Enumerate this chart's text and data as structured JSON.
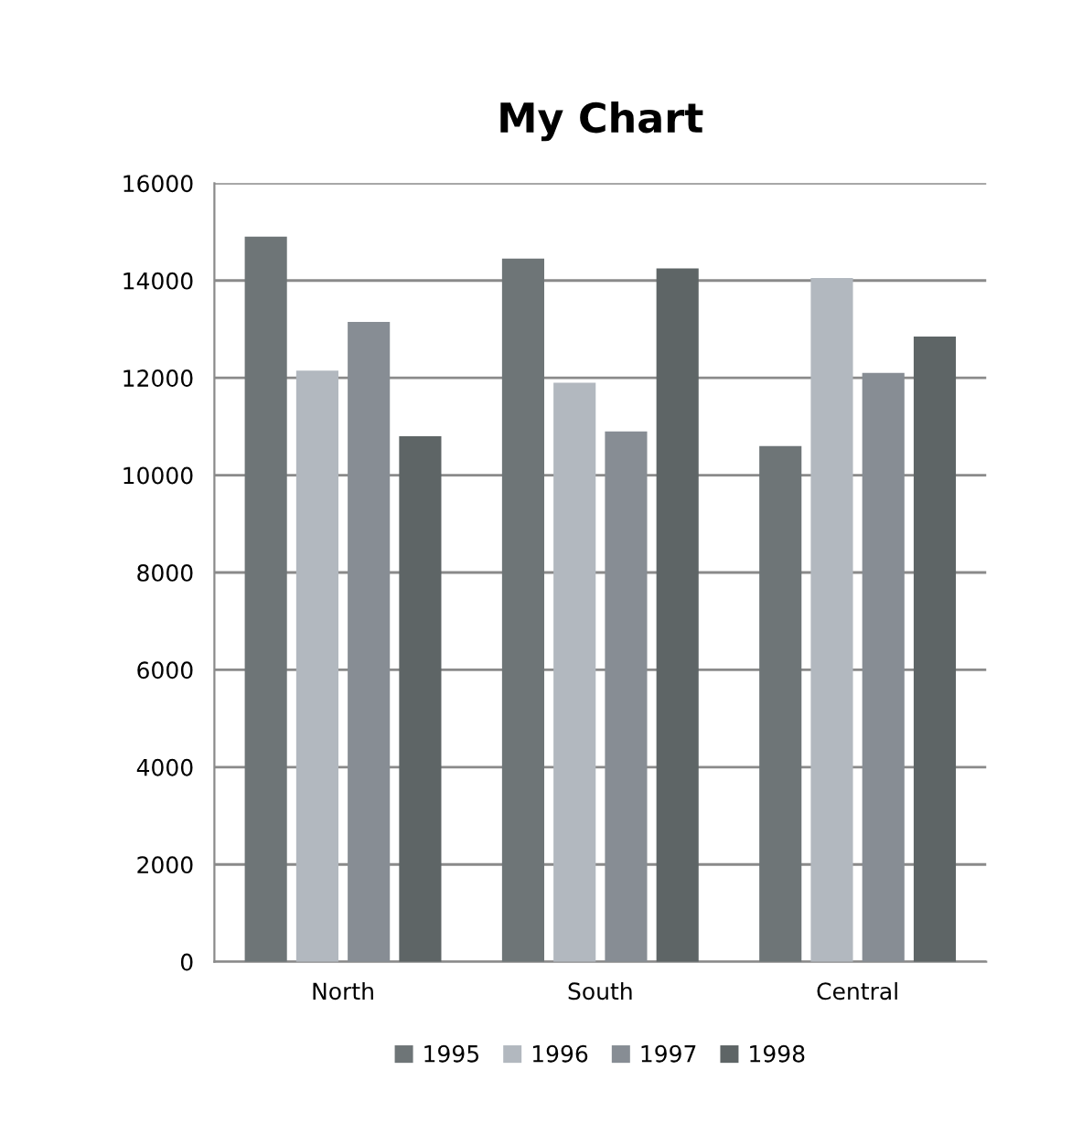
{
  "chart_data": {
    "type": "bar",
    "title": "My Chart",
    "categories": [
      "North",
      "South",
      "Central"
    ],
    "series": [
      {
        "name": "1995",
        "color": "#6e7577",
        "values": [
          14900,
          14450,
          10600
        ]
      },
      {
        "name": "1996",
        "color": "#b2b8bf",
        "values": [
          12150,
          11900,
          14050
        ]
      },
      {
        "name": "1997",
        "color": "#878d94",
        "values": [
          13150,
          10900,
          12100
        ]
      },
      {
        "name": "1998",
        "color": "#5e6566",
        "values": [
          10800,
          14250,
          12850
        ]
      }
    ],
    "ylim": [
      0,
      16000
    ],
    "yticks": [
      0,
      2000,
      4000,
      6000,
      8000,
      10000,
      12000,
      14000,
      16000
    ],
    "grid": "y",
    "legend": "bottom"
  }
}
